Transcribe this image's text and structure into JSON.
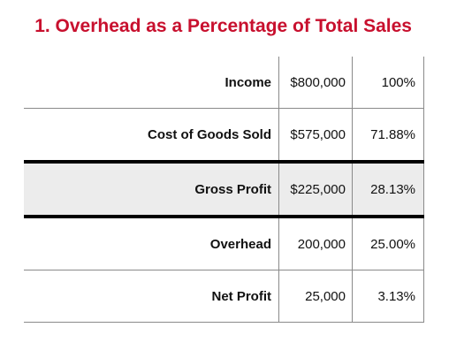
{
  "title": "1. Overhead as a Percentage of Total Sales",
  "rows": [
    {
      "label": "Income",
      "amount": "$800,000",
      "percent": "100%"
    },
    {
      "label": "Cost of Goods Sold",
      "amount": "$575,000",
      "percent": "71.88%"
    },
    {
      "label": "Gross Profit",
      "amount": "$225,000",
      "percent": "28.13%"
    },
    {
      "label": "Overhead",
      "amount": "200,000",
      "percent": "25.00%"
    },
    {
      "label": "Net Profit",
      "amount": "25,000",
      "percent": "3.13%"
    }
  ],
  "colors": {
    "title": "#c8102e",
    "highlight_row": "#ececec",
    "grid": "#8a8a8a"
  }
}
